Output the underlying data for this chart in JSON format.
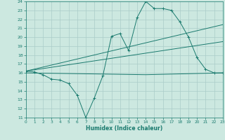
{
  "bg_color": "#cce8e0",
  "line_color": "#1a7a6e",
  "grid_color": "#aaccc8",
  "line1_x": [
    0,
    1,
    2,
    3,
    4,
    5,
    6,
    7,
    8,
    9,
    10,
    11,
    12,
    13,
    14,
    15,
    16,
    17,
    18,
    19,
    20,
    21,
    22,
    23
  ],
  "line1_y": [
    16.2,
    16.1,
    15.8,
    15.3,
    15.2,
    14.8,
    13.5,
    11.0,
    13.2,
    15.7,
    20.1,
    20.4,
    18.5,
    22.2,
    24.0,
    23.2,
    23.2,
    23.0,
    21.7,
    20.0,
    17.7,
    16.4,
    16.0,
    16.0
  ],
  "line2_x": [
    0,
    23
  ],
  "line2_y": [
    16.2,
    21.4
  ],
  "line3_x": [
    0,
    23
  ],
  "line3_y": [
    16.2,
    19.5
  ],
  "line4_x": [
    0,
    14,
    23
  ],
  "line4_y": [
    16.0,
    15.8,
    16.0
  ],
  "xlim": [
    0,
    23
  ],
  "ylim": [
    11,
    24
  ],
  "yticks": [
    11,
    12,
    13,
    14,
    15,
    16,
    17,
    18,
    19,
    20,
    21,
    22,
    23,
    24
  ],
  "xticks": [
    0,
    1,
    2,
    3,
    4,
    5,
    6,
    7,
    8,
    9,
    10,
    11,
    12,
    13,
    14,
    15,
    16,
    17,
    18,
    19,
    20,
    21,
    22,
    23
  ],
  "xlabel": "Humidex (Indice chaleur)"
}
